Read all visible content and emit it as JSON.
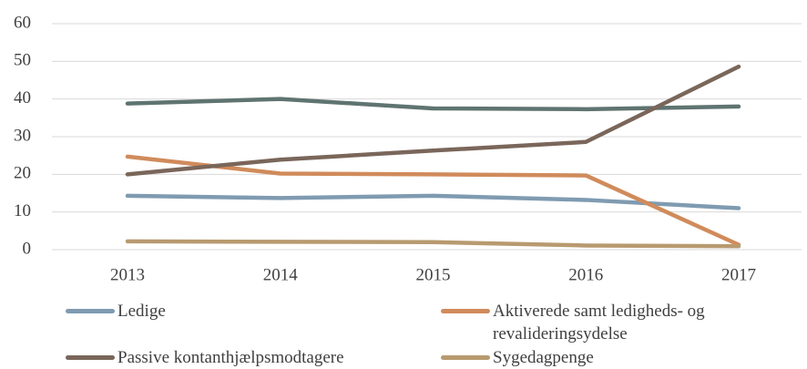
{
  "chart_data": {
    "type": "line",
    "categories": [
      "2013",
      "2014",
      "2015",
      "2016",
      "2017"
    ],
    "series": [
      {
        "color": "#5f7471",
        "values": [
          38.8,
          40.0,
          37.5,
          37.3,
          38.0
        ]
      },
      {
        "name": "Ledige",
        "color": "#7f9bb1",
        "values": [
          14.3,
          13.7,
          14.3,
          13.2,
          11.0
        ]
      },
      {
        "name": "Aktiverede samt ledigheds- og revalideringsydelse",
        "color": "#d08b5b",
        "values": [
          24.7,
          20.2,
          20.0,
          19.7,
          1.3
        ]
      },
      {
        "name": "Passive kontanthjælpsmodtagere",
        "color": "#7a665a",
        "values": [
          20.0,
          23.9,
          26.3,
          28.6,
          48.6
        ]
      },
      {
        "name": "Sygedagpenge",
        "color": "#b89a70",
        "values": [
          2.2,
          2.1,
          2.0,
          1.1,
          0.9
        ]
      }
    ],
    "ylim": [
      0,
      60
    ],
    "yticks": [
      0,
      10,
      20,
      30,
      40,
      50,
      60
    ],
    "grid": true
  }
}
